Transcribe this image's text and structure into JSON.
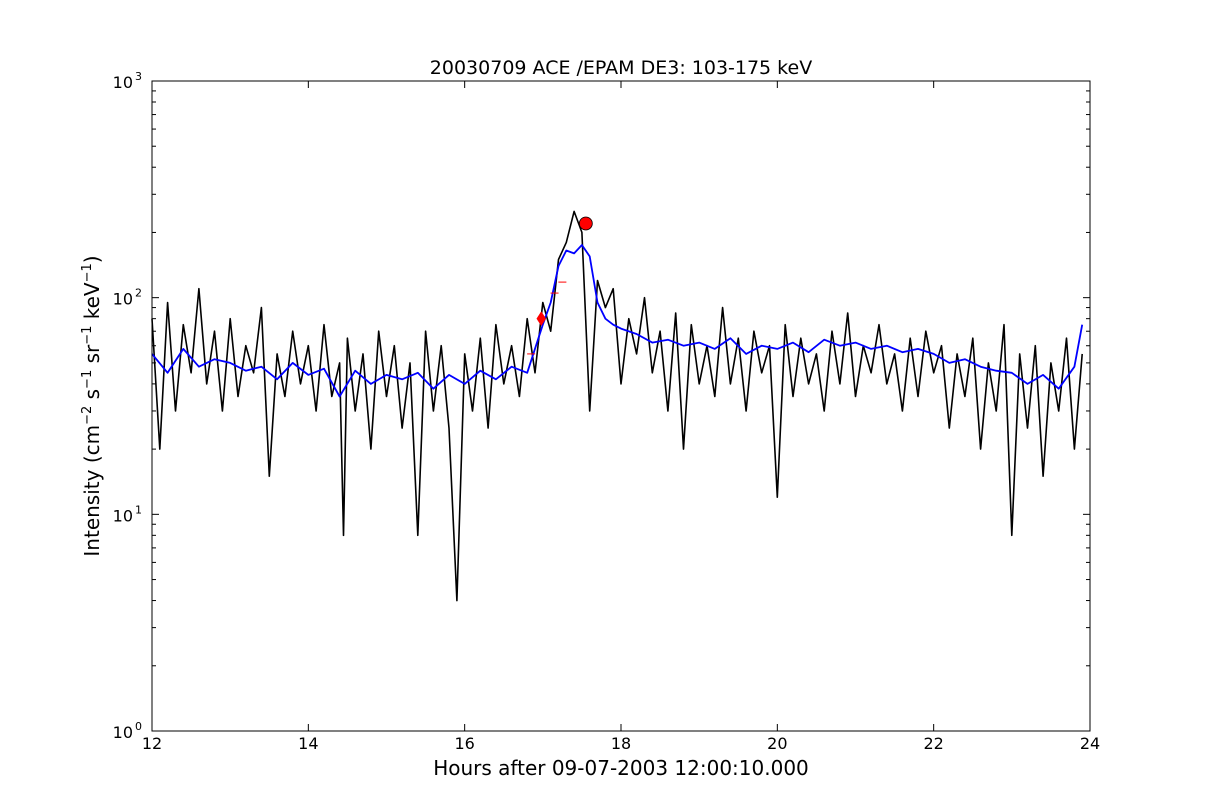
{
  "chart_data": {
    "type": "line",
    "title": "20030709 ACE /EPAM DE3: 103-175 keV",
    "xlabel": "Hours after 09-07-2003 12:00:10.000",
    "ylabel_parts": [
      "Intensity (cm",
      "−2",
      " s",
      "−1",
      " sr",
      "−1",
      " keV",
      "−1",
      ")"
    ],
    "xlim": [
      12,
      24
    ],
    "ylim": [
      1,
      1000
    ],
    "yscale": "log",
    "grid": false,
    "x_ticks": [
      12,
      14,
      16,
      18,
      20,
      22,
      24
    ],
    "x_tick_labels": [
      "12",
      "14",
      "16",
      "18",
      "20",
      "22",
      "24"
    ],
    "y_ticks": [
      1,
      10,
      100,
      1000
    ],
    "y_tick_labels": [
      {
        "base": "10",
        "exp": "0"
      },
      {
        "base": "10",
        "exp": "1"
      },
      {
        "base": "10",
        "exp": "2"
      },
      {
        "base": "10",
        "exp": "3"
      }
    ],
    "series": [
      {
        "color": "#000000",
        "x": [
          12.0,
          12.1,
          12.2,
          12.3,
          12.4,
          12.5,
          12.6,
          12.7,
          12.8,
          12.9,
          13.0,
          13.1,
          13.2,
          13.3,
          13.4,
          13.5,
          13.6,
          13.7,
          13.8,
          13.9,
          14.0,
          14.1,
          14.2,
          14.3,
          14.4,
          14.45,
          14.5,
          14.6,
          14.7,
          14.8,
          14.9,
          15.0,
          15.1,
          15.2,
          15.3,
          15.4,
          15.5,
          15.6,
          15.7,
          15.8,
          15.9,
          16.0,
          16.1,
          16.2,
          16.3,
          16.4,
          16.5,
          16.6,
          16.7,
          16.8,
          16.9,
          17.0,
          17.1,
          17.2,
          17.3,
          17.4,
          17.5,
          17.6,
          17.7,
          17.8,
          17.9,
          18.0,
          18.1,
          18.2,
          18.3,
          18.4,
          18.5,
          18.6,
          18.7,
          18.8,
          18.9,
          19.0,
          19.1,
          19.2,
          19.3,
          19.4,
          19.5,
          19.6,
          19.7,
          19.8,
          19.9,
          20.0,
          20.1,
          20.2,
          20.3,
          20.4,
          20.5,
          20.6,
          20.7,
          20.8,
          20.9,
          21.0,
          21.1,
          21.2,
          21.3,
          21.4,
          21.5,
          21.6,
          21.7,
          21.8,
          21.9,
          22.0,
          22.1,
          22.2,
          22.3,
          22.4,
          22.5,
          22.6,
          22.7,
          22.8,
          22.9,
          23.0,
          23.1,
          23.2,
          23.3,
          23.4,
          23.5,
          23.6,
          23.7,
          23.8,
          23.9
        ],
        "y": [
          80,
          20,
          95,
          30,
          75,
          45,
          110,
          40,
          70,
          30,
          80,
          35,
          60,
          45,
          90,
          15,
          55,
          35,
          70,
          40,
          60,
          30,
          75,
          35,
          50,
          8,
          65,
          30,
          55,
          20,
          70,
          35,
          60,
          25,
          50,
          8,
          70,
          30,
          60,
          25,
          4,
          55,
          30,
          65,
          25,
          75,
          40,
          60,
          35,
          80,
          45,
          95,
          70,
          150,
          180,
          250,
          200,
          30,
          120,
          90,
          110,
          40,
          80,
          55,
          100,
          45,
          70,
          30,
          85,
          20,
          75,
          40,
          60,
          35,
          90,
          40,
          65,
          30,
          70,
          45,
          60,
          12,
          75,
          35,
          65,
          40,
          55,
          30,
          70,
          40,
          85,
          35,
          60,
          45,
          75,
          40,
          55,
          30,
          65,
          35,
          70,
          45,
          60,
          25,
          55,
          35,
          65,
          20,
          50,
          30,
          75,
          8,
          55,
          25,
          60,
          15,
          50,
          30,
          65,
          20,
          55
        ]
      },
      {
        "color": "#0000ff",
        "x": [
          12.0,
          12.2,
          12.4,
          12.6,
          12.8,
          13.0,
          13.2,
          13.4,
          13.6,
          13.8,
          14.0,
          14.2,
          14.4,
          14.6,
          14.8,
          15.0,
          15.2,
          15.4,
          15.6,
          15.8,
          16.0,
          16.2,
          16.4,
          16.6,
          16.8,
          17.0,
          17.1,
          17.2,
          17.3,
          17.4,
          17.5,
          17.6,
          17.7,
          17.8,
          17.9,
          18.0,
          18.2,
          18.4,
          18.6,
          18.8,
          19.0,
          19.2,
          19.4,
          19.6,
          19.8,
          20.0,
          20.2,
          20.4,
          20.6,
          20.8,
          21.0,
          21.2,
          21.4,
          21.6,
          21.8,
          22.0,
          22.2,
          22.4,
          22.6,
          22.8,
          23.0,
          23.2,
          23.4,
          23.6,
          23.8,
          23.9
        ],
        "y": [
          55,
          45,
          58,
          48,
          52,
          50,
          46,
          48,
          42,
          50,
          44,
          47,
          35,
          46,
          40,
          44,
          42,
          45,
          38,
          44,
          40,
          46,
          42,
          48,
          45,
          75,
          95,
          140,
          165,
          160,
          175,
          155,
          95,
          80,
          75,
          72,
          68,
          62,
          64,
          60,
          62,
          58,
          65,
          55,
          60,
          58,
          62,
          56,
          64,
          60,
          62,
          58,
          60,
          56,
          58,
          55,
          50,
          52,
          48,
          46,
          45,
          40,
          44,
          38,
          48,
          75
        ]
      }
    ],
    "markers": [
      {
        "shape": "diamond",
        "color": "#ff0000",
        "x": 16.98,
        "y": 80
      },
      {
        "shape": "circle",
        "color": "#ff0000",
        "x": 17.55,
        "y": 220
      }
    ],
    "small_marks": [
      {
        "color": "#ff0000",
        "x": 16.85,
        "y": 55
      },
      {
        "color": "#ff0000",
        "x": 17.15,
        "y": 105
      },
      {
        "color": "#ff0000",
        "x": 17.25,
        "y": 118
      }
    ]
  }
}
